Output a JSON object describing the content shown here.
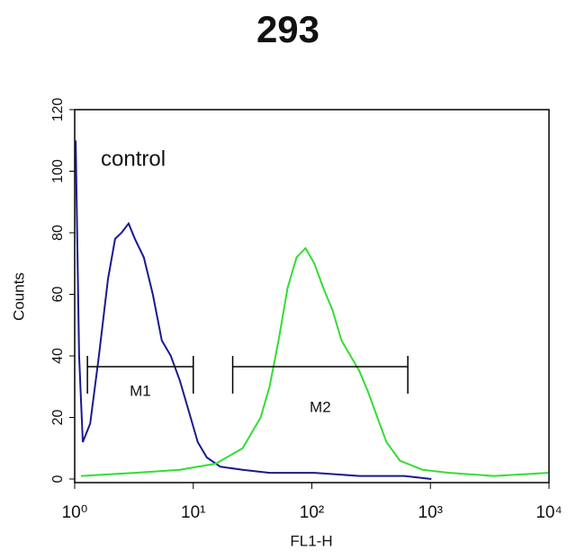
{
  "chart_data": {
    "type": "line",
    "title": "293",
    "xlabel": "FL1-H",
    "ylabel": "Counts",
    "annotations": [
      "control"
    ],
    "xscale": "log",
    "xlim": [
      1,
      10000
    ],
    "xticks": [
      {
        "value": 1,
        "label": "10⁰"
      },
      {
        "value": 10,
        "label": "10¹"
      },
      {
        "value": 100,
        "label": "10²"
      },
      {
        "value": 1000,
        "label": "10³"
      },
      {
        "value": 10000,
        "label": "10⁴"
      }
    ],
    "ylim": [
      0,
      120
    ],
    "yticks": [
      0,
      20,
      40,
      60,
      80,
      100,
      120
    ],
    "markers": [
      {
        "name": "M1",
        "range": [
          1.28,
          10
        ],
        "y": 36.5
      },
      {
        "name": "M2",
        "range": [
          21.5,
          645
        ],
        "y": 36.5
      }
    ],
    "series": [
      {
        "color": "#1a1a8c",
        "x": [
          1.02,
          1.09,
          1.17,
          1.35,
          1.6,
          1.91,
          2.19,
          2.48,
          2.85,
          3.22,
          3.83,
          4.56,
          5.43,
          6.47,
          7.7,
          9.17,
          10.9,
          13,
          16.9,
          26.1,
          44,
          105,
          252,
          603,
          1018
        ],
        "values": [
          110,
          40,
          12,
          18,
          40,
          65,
          78,
          80,
          83,
          78,
          72,
          60,
          45,
          40,
          32,
          22,
          12,
          7,
          4,
          3,
          2,
          2,
          1,
          1,
          0
        ]
      },
      {
        "color": "#33dd33",
        "x": [
          1.13,
          3.22,
          7.7,
          15.5,
          26.1,
          37,
          44,
          52.4,
          62.4,
          74.3,
          88.5,
          105,
          125,
          149,
          178,
          212,
          252,
          300,
          357,
          426,
          552,
          855,
          1443,
          3450,
          9820
        ],
        "values": [
          1,
          2,
          3,
          5,
          10,
          20,
          30,
          45,
          62,
          72,
          75,
          70,
          62,
          55,
          45,
          40,
          35,
          28,
          20,
          12,
          6,
          3,
          2,
          1,
          2
        ]
      }
    ]
  }
}
